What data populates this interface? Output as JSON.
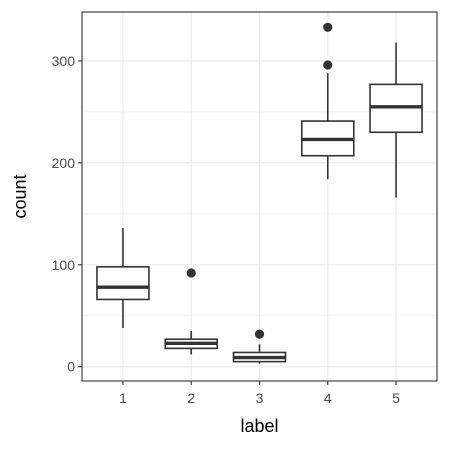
{
  "chart_data": {
    "type": "boxplot",
    "xlabel": "label",
    "ylabel": "count",
    "categories": [
      "1",
      "2",
      "3",
      "4",
      "5"
    ],
    "ylim": [
      -14,
      348
    ],
    "y_ticks": [
      0,
      100,
      200,
      300
    ],
    "y_minor_ticks": [
      50,
      150,
      250
    ],
    "grid": true,
    "theme": "bw",
    "box_color": "#333333",
    "grid_color": "#ebebeb",
    "boxes": [
      {
        "category": "1",
        "whisker_low": 38,
        "q1": 66,
        "median": 78,
        "q3": 98,
        "whisker_high": 136,
        "outliers": []
      },
      {
        "category": "2",
        "whisker_low": 12,
        "q1": 18,
        "median": 23,
        "q3": 27,
        "whisker_high": 35,
        "outliers": [
          92
        ]
      },
      {
        "category": "3",
        "whisker_low": 3,
        "q1": 5,
        "median": 9,
        "q3": 14,
        "whisker_high": 22,
        "outliers": [
          32
        ]
      },
      {
        "category": "4",
        "whisker_low": 184,
        "q1": 207,
        "median": 223,
        "q3": 241,
        "whisker_high": 288,
        "outliers": [
          296,
          333
        ]
      },
      {
        "category": "5",
        "whisker_low": 166,
        "q1": 230,
        "median": 255,
        "q3": 277,
        "whisker_high": 318,
        "outliers": []
      }
    ]
  }
}
